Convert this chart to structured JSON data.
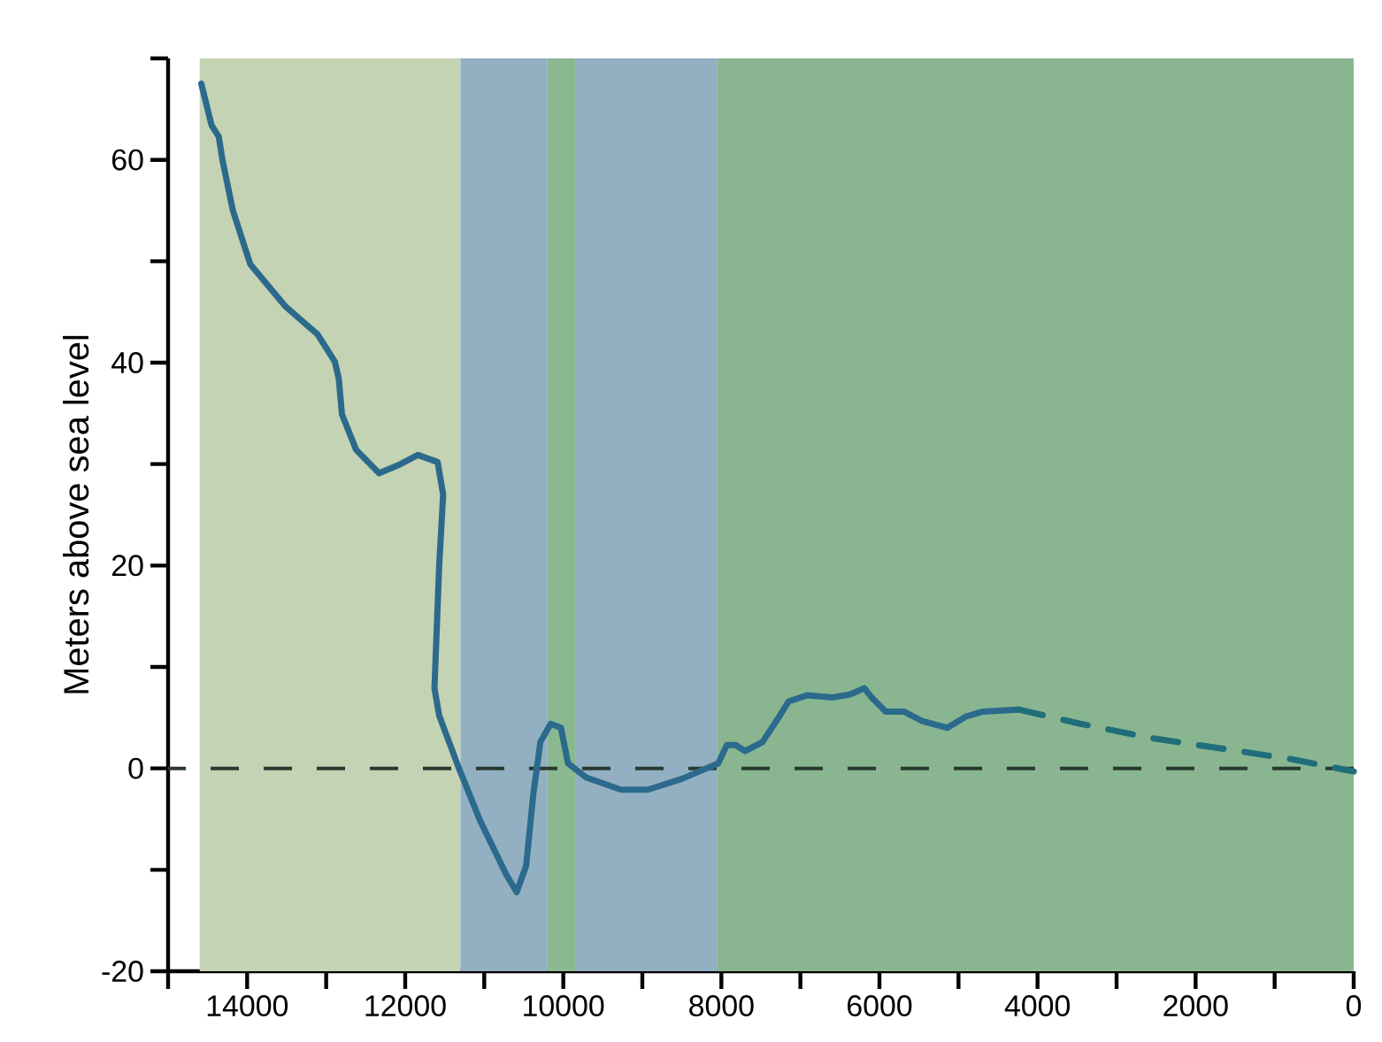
{
  "chart_data": {
    "type": "line",
    "ylabel": "Meters above sea level",
    "xlim": [
      15000,
      0
    ],
    "ylim": [
      -20,
      70
    ],
    "xticks": [
      {
        "value": 15000,
        "label": null
      },
      14000,
      {
        "value": 13000,
        "label": null
      },
      12000,
      {
        "value": 11000,
        "label": null
      },
      10000,
      {
        "value": 9000,
        "label": null
      },
      8000,
      {
        "value": 7000,
        "label": null
      },
      6000,
      {
        "value": 5000,
        "label": null
      },
      4000,
      {
        "value": 3000,
        "label": null
      },
      2000,
      {
        "value": 1000,
        "label": null
      },
      0
    ],
    "yticks": [
      -20,
      {
        "value": -10,
        "label": null
      },
      0,
      {
        "value": 10,
        "label": null
      },
      20,
      {
        "value": 30,
        "label": null
      },
      40,
      {
        "value": 50,
        "label": null
      },
      60,
      {
        "value": 70,
        "label": null
      }
    ],
    "grid": false,
    "series": [
      {
        "color": "#2b6a8c",
        "line_style": "solid",
        "x": [
          14580,
          14450,
          14360,
          14310,
          14180,
          13960,
          13510,
          13110,
          12890,
          12840,
          12800,
          12620,
          12330,
          12060,
          11840,
          11590,
          11520,
          11570,
          11630,
          11570,
          11320,
          11050,
          10720,
          10590,
          10470,
          10380,
          10290,
          10160,
          10030,
          9940,
          9710,
          9270,
          8930,
          8490,
          8040,
          7930,
          7820,
          7700,
          7480,
          7260,
          7150,
          6920,
          6590,
          6370,
          6190,
          6100,
          5920,
          5690,
          5470,
          5140,
          4910,
          4690,
          4240
        ],
        "values": [
          67.5,
          63.4,
          62.3,
          59.9,
          55,
          49.7,
          45.5,
          42.8,
          40.1,
          38.4,
          34.9,
          31.4,
          29.1,
          30.0,
          30.9,
          30.2,
          27.0,
          20,
          7.9,
          5.2,
          0,
          -5.2,
          -10.5,
          -12.2,
          -9.6,
          -2.6,
          2.6,
          4.4,
          4.0,
          0.5,
          -0.9,
          -2.1,
          -2.1,
          -1.0,
          0.5,
          2.3,
          2.3,
          1.7,
          2.6,
          5.2,
          6.6,
          7.2,
          7.0,
          7.3,
          7.9,
          7.0,
          5.6,
          5.6,
          4.7,
          4.0,
          5.1,
          5.6,
          5.8
        ]
      },
      {
        "color": "#1f6e7a",
        "line_style": "dashed",
        "x": [
          4240,
          3460,
          2570,
          1450,
          780,
          0
        ],
        "values": [
          5.8,
          4.4,
          3.0,
          1.7,
          0.9,
          -0.3
        ]
      }
    ],
    "ref_lines": [
      {
        "axis": "y",
        "value": 0,
        "color": "#2a3a30",
        "line_style": "dashed"
      }
    ],
    "bands": [
      {
        "axis": "x",
        "from": 14600,
        "to": 11300,
        "color": "#c4d3b3"
      },
      {
        "axis": "x",
        "from": 11300,
        "to": 10200,
        "color": "#93b0c3"
      },
      {
        "axis": "x",
        "from": 10200,
        "to": 9850,
        "color": "#8ab891"
      },
      {
        "axis": "x",
        "from": 9850,
        "to": 8050,
        "color": "#93b0c3"
      },
      {
        "axis": "x",
        "from": 8050,
        "to": 0,
        "color": "#89b690"
      }
    ]
  }
}
